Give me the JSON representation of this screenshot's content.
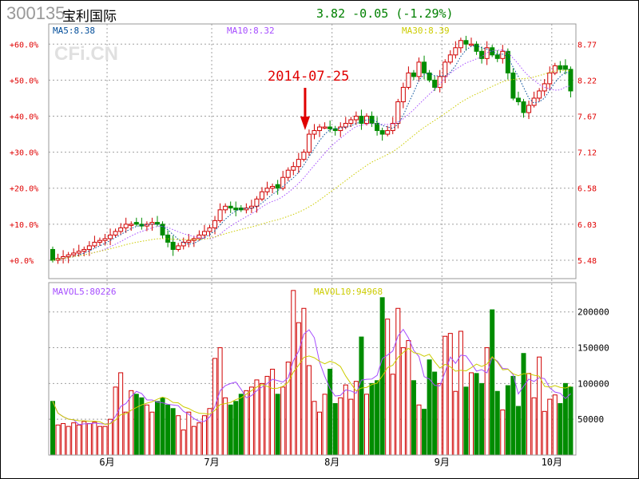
{
  "header": {
    "code": "300135",
    "name": "宝利国际",
    "quote": "3.82 -0.05 (-1.29%)"
  },
  "watermark": "CFi.CN",
  "annotation": {
    "label": "2014-07-25",
    "bar_index": 49
  },
  "colors": {
    "up": "#d00000",
    "down": "#008c00",
    "ma5": "#004c99",
    "ma10": "#a64dff",
    "ma30": "#cccc00",
    "grid": "#a0a0a0"
  },
  "chart_data": [
    {
      "type": "candlestick",
      "title": "300135 宝利国际",
      "legend": {
        "ma5": "MA5:8.38",
        "ma10": "MA10:8.32",
        "ma30": "MA30:8.39"
      },
      "left_ticks": [
        "+0.0%",
        "+10.0%",
        "+20.0%",
        "+30.0%",
        "+40.0%",
        "+50.0%",
        "+60.0%"
      ],
      "left_tick_values": [
        0,
        10,
        20,
        30,
        40,
        50,
        60
      ],
      "right_ticks": [
        "5.48",
        "6.03",
        "6.58",
        "7.12",
        "7.67",
        "8.22",
        "8.77"
      ],
      "ylim_pct": [
        -5.1,
        65.6
      ],
      "base_price": 5.48,
      "months": [
        {
          "label": "6月",
          "index": 11
        },
        {
          "label": "7月",
          "index": 31
        },
        {
          "label": "8月",
          "index": 54
        },
        {
          "label": "9月",
          "index": 75
        },
        {
          "label": "10月",
          "index": 96
        }
      ],
      "close_pct": [
        0,
        0.5,
        1,
        1.5,
        2,
        2.5,
        3,
        4,
        5,
        5.5,
        6,
        7,
        8,
        9,
        10,
        10,
        10,
        9.5,
        10,
        10.5,
        10,
        7,
        5,
        3,
        4,
        5,
        5.5,
        6,
        7,
        8,
        9,
        11,
        14,
        15,
        14.5,
        14,
        14,
        14.5,
        15,
        17,
        19,
        20,
        20.5,
        20,
        23,
        25,
        26,
        28,
        30,
        35,
        36,
        37,
        37,
        36.5,
        36,
        37,
        38,
        39,
        40,
        38,
        40,
        38,
        36,
        35,
        36,
        38,
        44,
        48,
        52,
        51,
        55,
        52,
        50,
        48,
        51,
        55,
        57,
        59,
        61,
        60,
        60,
        58,
        56,
        59,
        57,
        56,
        58,
        52,
        45,
        44,
        41,
        43,
        45,
        47,
        49,
        52,
        54,
        53,
        53,
        47
      ],
      "open_pct": [
        3,
        0,
        0.5,
        1,
        1.5,
        2,
        2.5,
        3,
        4,
        5,
        5.5,
        6,
        7,
        8,
        9,
        10,
        10.5,
        10,
        9.5,
        10,
        10.5,
        10,
        7,
        5,
        3,
        4,
        5,
        5.5,
        6,
        7,
        8,
        9,
        11,
        14,
        15,
        14.5,
        14.5,
        14,
        14.5,
        15,
        17,
        19,
        20,
        21,
        20,
        23,
        25,
        26,
        28,
        30,
        35,
        36,
        37,
        37,
        36.5,
        36,
        37,
        38,
        39,
        40,
        38,
        40,
        38,
        36,
        35,
        36,
        38,
        44,
        48,
        52,
        51,
        55,
        52,
        50,
        48,
        51,
        55,
        57,
        59,
        61,
        60,
        60,
        58,
        56,
        59,
        57,
        56,
        58,
        52,
        45,
        44,
        41,
        43,
        45,
        47,
        49,
        52,
        54,
        54,
        53
      ]
    },
    {
      "type": "bar",
      "title": "Volume",
      "legend": {
        "mavol5": "MAVOL5:80226",
        "mavol10": "MAVOL10:94968"
      },
      "right_ticks": [
        "50000",
        "100000",
        "150000",
        "200000"
      ],
      "right_tick_values": [
        50000,
        100000,
        150000,
        200000
      ],
      "ylim": [
        0,
        241000
      ],
      "volume": [
        75000,
        42000,
        44000,
        40000,
        45000,
        42000,
        47000,
        44000,
        46000,
        40000,
        40000,
        50000,
        95000,
        115000,
        60000,
        90000,
        85000,
        80000,
        70000,
        60000,
        75000,
        80000,
        70000,
        65000,
        55000,
        35000,
        60000,
        40000,
        45000,
        55000,
        65000,
        135000,
        150000,
        80000,
        70000,
        75000,
        85000,
        90000,
        95000,
        105000,
        100000,
        110000,
        120000,
        85000,
        95000,
        130000,
        230000,
        185000,
        205000,
        125000,
        75000,
        60000,
        85000,
        120000,
        72000,
        80000,
        98000,
        78000,
        103000,
        165000,
        85000,
        100000,
        104000,
        220000,
        190000,
        113000,
        205000,
        150000,
        160000,
        104000,
        70000,
        64000,
        133000,
        116000,
        100000,
        166000,
        170000,
        89000,
        173000,
        95000,
        115000,
        114000,
        100000,
        150000,
        203000,
        89000,
        63000,
        97000,
        110000,
        68000,
        142000,
        114000,
        80000,
        137000,
        61000,
        78000,
        84000,
        72000,
        100000,
        95000
      ]
    }
  ]
}
